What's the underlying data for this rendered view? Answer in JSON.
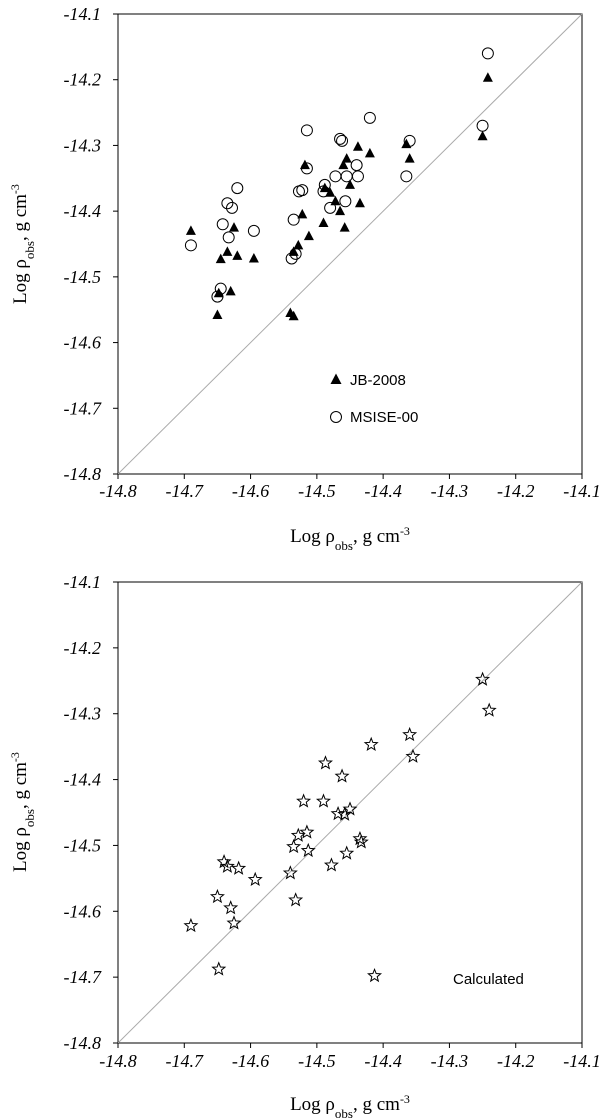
{
  "chart_data": [
    {
      "type": "scatter",
      "xlabel": "Log ρobs, g cm-3",
      "ylabel": "Log ρobs, g cm-3",
      "xlim": [
        -14.8,
        -14.1
      ],
      "ylim": [
        -14.8,
        -14.1
      ],
      "xticks": [
        "-14.8",
        "-14.7",
        "-14.6",
        "-14.5",
        "-14.4",
        "-14.3",
        "-14.2",
        "-14.1"
      ],
      "yticks": [
        "-14.1",
        "-14.2",
        "-14.3",
        "-14.4",
        "-14.5",
        "-14.6",
        "-14.7",
        "-14.8"
      ],
      "reference_line": "y = x",
      "legend_position": "center-right",
      "series": [
        {
          "name": "JB-2008",
          "marker": "triangle-filled",
          "points": [
            [
              -14.69,
              -14.43
            ],
            [
              -14.65,
              -14.558
            ],
            [
              -14.648,
              -14.525
            ],
            [
              -14.645,
              -14.473
            ],
            [
              -14.635,
              -14.462
            ],
            [
              -14.63,
              -14.522
            ],
            [
              -14.625,
              -14.425
            ],
            [
              -14.62,
              -14.468
            ],
            [
              -14.595,
              -14.472
            ],
            [
              -14.54,
              -14.555
            ],
            [
              -14.535,
              -14.56
            ],
            [
              -14.535,
              -14.462
            ],
            [
              -14.528,
              -14.452
            ],
            [
              -14.522,
              -14.405
            ],
            [
              -14.518,
              -14.33
            ],
            [
              -14.512,
              -14.438
            ],
            [
              -14.49,
              -14.418
            ],
            [
              -14.488,
              -14.365
            ],
            [
              -14.48,
              -14.372
            ],
            [
              -14.472,
              -14.385
            ],
            [
              -14.465,
              -14.4
            ],
            [
              -14.46,
              -14.33
            ],
            [
              -14.458,
              -14.425
            ],
            [
              -14.455,
              -14.32
            ],
            [
              -14.45,
              -14.36
            ],
            [
              -14.438,
              -14.302
            ],
            [
              -14.435,
              -14.388
            ],
            [
              -14.42,
              -14.312
            ],
            [
              -14.365,
              -14.298
            ],
            [
              -14.36,
              -14.32
            ],
            [
              -14.25,
              -14.286
            ],
            [
              -14.242,
              -14.197
            ]
          ]
        },
        {
          "name": "MSISE-00",
          "marker": "circle-open",
          "points": [
            [
              -14.69,
              -14.452
            ],
            [
              -14.65,
              -14.53
            ],
            [
              -14.645,
              -14.518
            ],
            [
              -14.642,
              -14.42
            ],
            [
              -14.635,
              -14.388
            ],
            [
              -14.633,
              -14.44
            ],
            [
              -14.628,
              -14.395
            ],
            [
              -14.62,
              -14.365
            ],
            [
              -14.595,
              -14.43
            ],
            [
              -14.538,
              -14.472
            ],
            [
              -14.535,
              -14.413
            ],
            [
              -14.532,
              -14.465
            ],
            [
              -14.527,
              -14.37
            ],
            [
              -14.522,
              -14.368
            ],
            [
              -14.515,
              -14.277
            ],
            [
              -14.515,
              -14.335
            ],
            [
              -14.49,
              -14.37
            ],
            [
              -14.488,
              -14.36
            ],
            [
              -14.48,
              -14.395
            ],
            [
              -14.472,
              -14.347
            ],
            [
              -14.465,
              -14.29
            ],
            [
              -14.462,
              -14.293
            ],
            [
              -14.457,
              -14.385
            ],
            [
              -14.455,
              -14.347
            ],
            [
              -14.44,
              -14.33
            ],
            [
              -14.438,
              -14.347
            ],
            [
              -14.42,
              -14.258
            ],
            [
              -14.365,
              -14.347
            ],
            [
              -14.36,
              -14.293
            ],
            [
              -14.25,
              -14.27
            ],
            [
              -14.242,
              -14.16
            ]
          ]
        }
      ]
    },
    {
      "type": "scatter",
      "xlabel": "Log ρobs, g cm-3",
      "ylabel": "Log ρobs, g cm-3",
      "xlim": [
        -14.8,
        -14.1
      ],
      "ylim": [
        -14.8,
        -14.1
      ],
      "xticks": [
        "-14.8",
        "-14.7",
        "-14.6",
        "-14.5",
        "-14.4",
        "-14.3",
        "-14.2",
        "-14.1"
      ],
      "yticks": [
        "-14.1",
        "-14.2",
        "-14.3",
        "-14.4",
        "-14.5",
        "-14.6",
        "-14.7",
        "-14.8"
      ],
      "reference_line": "y = x",
      "annotation": "Calculated",
      "series": [
        {
          "name": "",
          "marker": "star-open",
          "points": [
            [
              -14.69,
              -14.622
            ],
            [
              -14.65,
              -14.578
            ],
            [
              -14.648,
              -14.688
            ],
            [
              -14.64,
              -14.525
            ],
            [
              -14.635,
              -14.532
            ],
            [
              -14.63,
              -14.595
            ],
            [
              -14.625,
              -14.618
            ],
            [
              -14.618,
              -14.535
            ],
            [
              -14.593,
              -14.552
            ],
            [
              -14.54,
              -14.542
            ],
            [
              -14.535,
              -14.502
            ],
            [
              -14.532,
              -14.583
            ],
            [
              -14.528,
              -14.485
            ],
            [
              -14.52,
              -14.433
            ],
            [
              -14.515,
              -14.48
            ],
            [
              -14.513,
              -14.508
            ],
            [
              -14.49,
              -14.433
            ],
            [
              -14.487,
              -14.375
            ],
            [
              -14.478,
              -14.53
            ],
            [
              -14.468,
              -14.452
            ],
            [
              -14.462,
              -14.395
            ],
            [
              -14.458,
              -14.453
            ],
            [
              -14.455,
              -14.512
            ],
            [
              -14.45,
              -14.445
            ],
            [
              -14.435,
              -14.49
            ],
            [
              -14.433,
              -14.495
            ],
            [
              -14.418,
              -14.347
            ],
            [
              -14.413,
              -14.698
            ],
            [
              -14.36,
              -14.332
            ],
            [
              -14.355,
              -14.365
            ],
            [
              -14.25,
              -14.248
            ],
            [
              -14.24,
              -14.295
            ]
          ]
        }
      ]
    }
  ]
}
